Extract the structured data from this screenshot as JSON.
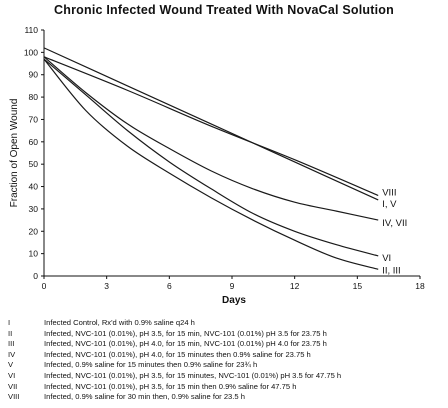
{
  "chart_data": {
    "type": "line",
    "title": "Chronic Infected Wound Treated With NovaCal Solution",
    "xlabel": "Days",
    "ylabel": "Fraction of Open Wound",
    "xlim": [
      0,
      18
    ],
    "ylim": [
      0,
      110
    ],
    "x_ticks": [
      "0",
      "3",
      "6",
      "9",
      "12",
      "15",
      "18"
    ],
    "y_ticks": [
      "0",
      "10",
      "20",
      "30",
      "40",
      "50",
      "60",
      "70",
      "80",
      "90",
      "100",
      "110"
    ],
    "grid": false,
    "series": [
      {
        "name": "VIII",
        "x": [
          0,
          4,
          8,
          12,
          16
        ],
        "y": [
          98,
          83,
          67,
          52,
          36
        ]
      },
      {
        "name": "I, V",
        "x": [
          0,
          4,
          8,
          12,
          16
        ],
        "y": [
          102,
          85,
          68,
          51,
          34
        ]
      },
      {
        "name": "IV, VII",
        "x": [
          0,
          2,
          4,
          6,
          8,
          10,
          12,
          14,
          16
        ],
        "y": [
          98,
          82,
          68,
          57,
          47,
          39,
          33,
          29,
          25
        ]
      },
      {
        "name": "VI",
        "x": [
          0,
          2,
          4,
          6,
          8,
          10,
          12,
          14,
          16
        ],
        "y": [
          97,
          81,
          65,
          51,
          39,
          28,
          20,
          14,
          9
        ]
      },
      {
        "name": "II, III",
        "x": [
          0,
          2,
          4,
          6,
          8,
          10,
          12,
          14,
          16
        ],
        "y": [
          97,
          74,
          58,
          46,
          35,
          25,
          16,
          8,
          3
        ]
      }
    ],
    "series_labels": [
      "VIII",
      "I, V",
      "IV, VII",
      "VI",
      "II, III"
    ],
    "legend": [
      {
        "key": "I",
        "text": "Infected Control, Rx'd with 0.9% saline q24 h"
      },
      {
        "key": "II",
        "text": "Infected, NVC-101 (0.01%), pH 3.5, for 15 min, NVC-101 (0.01%) pH 3.5 for 23.75 h"
      },
      {
        "key": "III",
        "text": "Infected, NVC-101 (0.01%), pH 4.0, for 15 min, NVC-101 (0.01%) pH 4.0 for 23.75 h"
      },
      {
        "key": "IV",
        "text": "Infected, NVC-101 (0.01%), pH 4.0, for 15 minutes then 0.9% saline for 23.75 h"
      },
      {
        "key": "V",
        "text": "Infected, 0.9% saline for 15 minutes then 0.9% saline for 23¾ h"
      },
      {
        "key": "VI",
        "text": "Infected, NVC-101 (0.01%), pH 3.5, for 15 minutes, NVC-101 (0.01%) pH 3.5 for 47.75 h"
      },
      {
        "key": "VII",
        "text": "Infected, NVC-101 (0.01%), pH 3.5, for 15 min then 0.9% saline for 47.75 h"
      },
      {
        "key": "VIII",
        "text": "Infected, 0.9% saline for 30 min then, 0.9% saline for 23.5 h"
      }
    ]
  }
}
